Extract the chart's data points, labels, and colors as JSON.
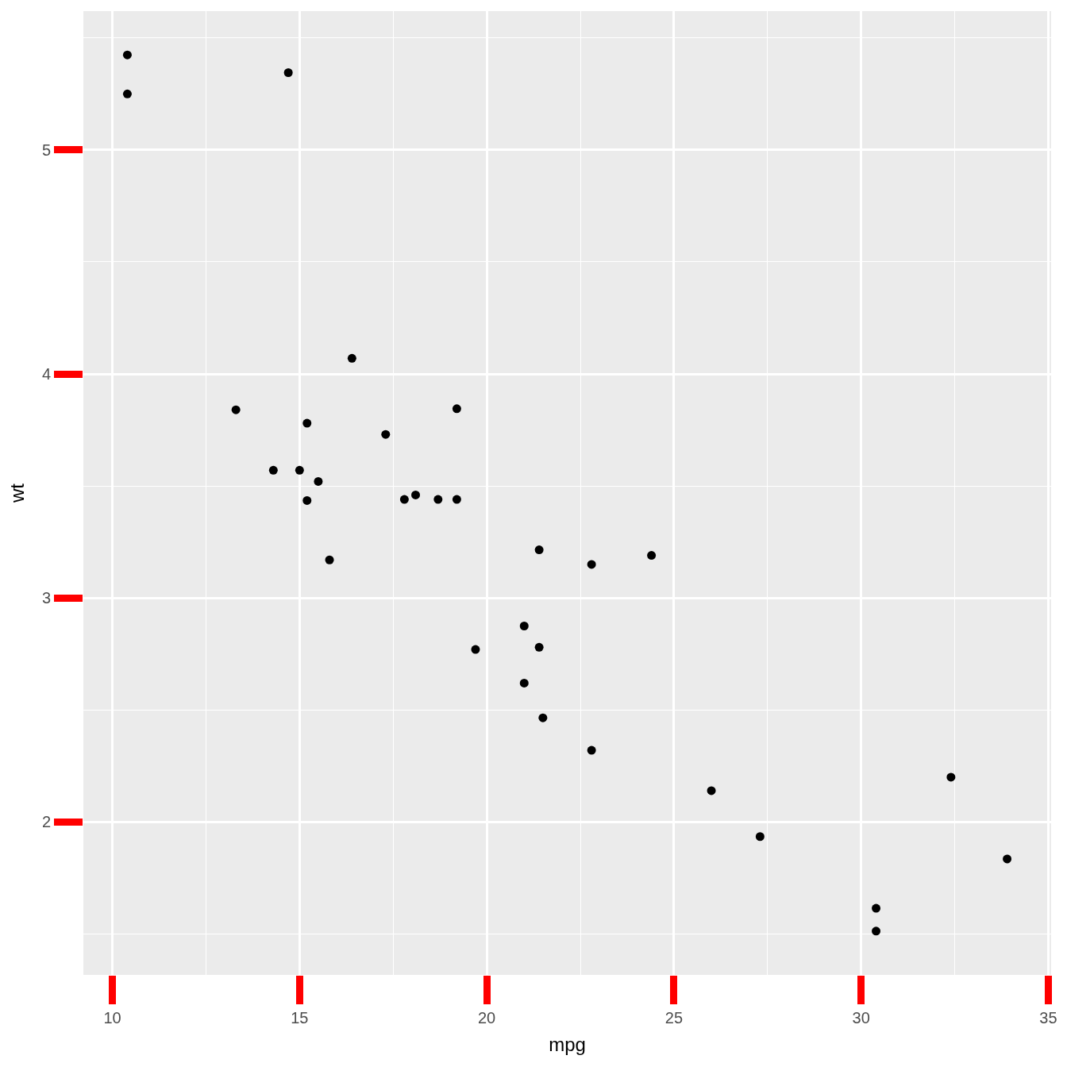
{
  "chart_data": {
    "type": "scatter",
    "xlabel": "mpg",
    "ylabel": "wt",
    "x": [
      21.0,
      21.0,
      22.8,
      21.4,
      18.7,
      18.1,
      14.3,
      24.4,
      22.8,
      19.2,
      17.8,
      16.4,
      17.3,
      15.2,
      10.4,
      10.4,
      14.7,
      32.4,
      30.4,
      33.9,
      21.5,
      15.5,
      15.2,
      13.3,
      19.2,
      27.3,
      26.0,
      30.4,
      15.8,
      19.7,
      15.0,
      21.4
    ],
    "series": [
      {
        "color": "#000000",
        "values": [
          2.62,
          2.875,
          2.32,
          3.215,
          3.44,
          3.46,
          3.57,
          3.19,
          3.15,
          3.44,
          3.44,
          4.07,
          3.73,
          3.78,
          5.25,
          5.424,
          5.345,
          2.2,
          1.615,
          1.835,
          2.465,
          3.52,
          3.435,
          3.84,
          3.845,
          1.935,
          2.14,
          1.513,
          3.17,
          2.77,
          3.57,
          2.78
        ]
      }
    ],
    "xlim": [
      9.225,
      35.075
    ],
    "ylim": [
      1.3175,
      5.6196
    ],
    "xticks": [
      10,
      15,
      20,
      25,
      30,
      35
    ],
    "yticks": [
      2,
      3,
      4,
      5
    ],
    "grid": true,
    "marker": "circle"
  }
}
